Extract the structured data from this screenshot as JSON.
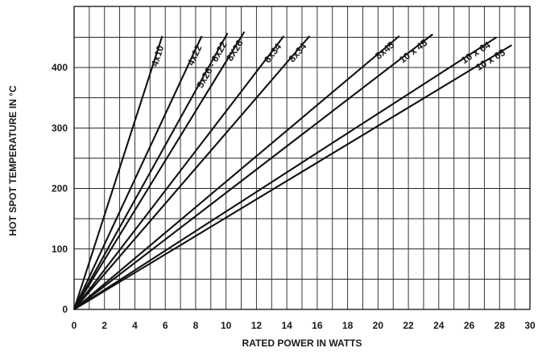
{
  "chart_data": {
    "type": "line",
    "xlabel": "RATED POWER IN WATTS",
    "ylabel": "HOT SPOT TEMPERATURE IN °C",
    "xlim": [
      0,
      30
    ],
    "ylim": [
      0,
      460
    ],
    "xticks": [
      "0",
      "2",
      "4",
      "6",
      "8",
      "10",
      "12",
      "14",
      "16",
      "18",
      "20",
      "22",
      "24",
      "26",
      "28",
      "30"
    ],
    "yticks": [
      "0",
      "100",
      "200",
      "300",
      "400"
    ],
    "grid": true,
    "series": [
      {
        "name": "4x10",
        "x": [
          0,
          5.8
        ],
        "y": [
          0,
          452
        ]
      },
      {
        "name": "4x22",
        "x": [
          0,
          8.4
        ],
        "y": [
          0,
          452
        ]
      },
      {
        "name": "5x26 - 6x22",
        "x": [
          0,
          10.1
        ],
        "y": [
          0,
          457
        ]
      },
      {
        "name": "8X26",
        "x": [
          0,
          11.2
        ],
        "y": [
          0,
          459
        ]
      },
      {
        "name": "6x34",
        "x": [
          0,
          13.8
        ],
        "y": [
          0,
          452
        ]
      },
      {
        "name": "8x34",
        "x": [
          0,
          15.5
        ],
        "y": [
          0,
          452
        ]
      },
      {
        "name": "8x45",
        "x": [
          0,
          21.4
        ],
        "y": [
          0,
          452
        ]
      },
      {
        "name": "10 x 45",
        "x": [
          0,
          23.6
        ],
        "y": [
          0,
          455
        ]
      },
      {
        "name": "10 x 64",
        "x": [
          0,
          27.8
        ],
        "y": [
          0,
          450
        ]
      },
      {
        "name": "10 x 65",
        "x": [
          0,
          28.8
        ],
        "y": [
          0,
          437
        ]
      }
    ]
  }
}
